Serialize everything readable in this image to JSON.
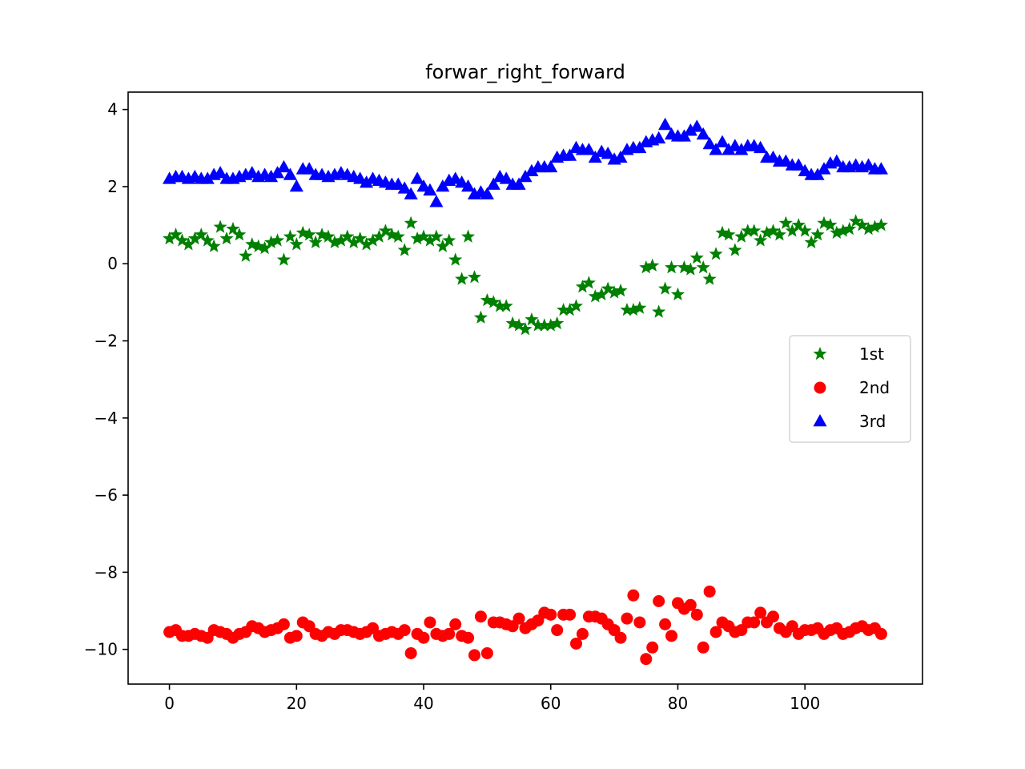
{
  "chart_data": {
    "type": "scatter",
    "title": "forwar_right_forward",
    "xlabel": "",
    "ylabel": "",
    "xlim": [
      -6.5,
      118.5
    ],
    "ylim": [
      -10.9,
      4.45
    ],
    "xticks": [
      0,
      20,
      40,
      60,
      80,
      100
    ],
    "yticks": [
      4,
      2,
      0,
      -2,
      -4,
      -6,
      -8,
      -10
    ],
    "xtick_labels": [
      "0",
      "20",
      "40",
      "60",
      "80",
      "100"
    ],
    "ytick_labels": [
      "4",
      "2",
      "0",
      "−2",
      "−4",
      "−6",
      "−8",
      "−10"
    ],
    "grid": false,
    "legend_position": "center-right",
    "series": [
      {
        "name": "1st",
        "marker": "star",
        "color": "#008000",
        "x": [
          0,
          1,
          2,
          3,
          4,
          5,
          6,
          7,
          8,
          9,
          10,
          11,
          12,
          13,
          14,
          15,
          16,
          17,
          18,
          19,
          20,
          21,
          22,
          23,
          24,
          25,
          26,
          27,
          28,
          29,
          30,
          31,
          32,
          33,
          34,
          35,
          36,
          37,
          38,
          39,
          40,
          41,
          42,
          43,
          44,
          45,
          46,
          47,
          48,
          49,
          50,
          51,
          52,
          53,
          54,
          55,
          56,
          57,
          58,
          59,
          60,
          61,
          62,
          63,
          64,
          65,
          66,
          67,
          68,
          69,
          70,
          71,
          72,
          73,
          74,
          75,
          76,
          77,
          78,
          79,
          80,
          81,
          82,
          83,
          84,
          85,
          86,
          87,
          88,
          89,
          90,
          91,
          92,
          93,
          94,
          95,
          96,
          97,
          98,
          99,
          100,
          101,
          102,
          103,
          104,
          105,
          106,
          107,
          108,
          109,
          110,
          111,
          112
        ],
        "y": [
          0.65,
          0.75,
          0.6,
          0.5,
          0.65,
          0.75,
          0.6,
          0.45,
          0.95,
          0.65,
          0.9,
          0.75,
          0.2,
          0.5,
          0.45,
          0.4,
          0.55,
          0.6,
          0.1,
          0.7,
          0.5,
          0.8,
          0.75,
          0.55,
          0.75,
          0.7,
          0.55,
          0.6,
          0.7,
          0.55,
          0.65,
          0.5,
          0.6,
          0.7,
          0.85,
          0.75,
          0.7,
          0.35,
          1.05,
          0.65,
          0.7,
          0.6,
          0.7,
          0.45,
          0.6,
          0.1,
          -0.4,
          0.7,
          -0.35,
          -1.4,
          -0.95,
          -1.0,
          -1.1,
          -1.1,
          -1.55,
          -1.6,
          -1.7,
          -1.45,
          -1.6,
          -1.6,
          -1.6,
          -1.55,
          -1.2,
          -1.2,
          -1.1,
          -0.6,
          -0.5,
          -0.85,
          -0.8,
          -0.65,
          -0.75,
          -0.7,
          -1.2,
          -1.2,
          -1.15,
          -0.1,
          -0.05,
          -1.25,
          -0.65,
          -0.1,
          -0.8,
          -0.1,
          -0.15,
          0.15,
          -0.1,
          -0.4,
          0.25,
          0.8,
          0.75,
          0.35,
          0.7,
          0.85,
          0.85,
          0.6,
          0.8,
          0.85,
          0.75,
          1.05,
          0.85,
          1.0,
          0.85,
          0.55,
          0.75,
          1.05,
          1.0,
          0.8,
          0.85,
          0.9,
          1.1,
          1.0,
          0.9,
          0.95,
          1.0
        ]
      },
      {
        "name": "2nd",
        "marker": "circle",
        "color": "#ff0000",
        "x": [
          0,
          1,
          2,
          3,
          4,
          5,
          6,
          7,
          8,
          9,
          10,
          11,
          12,
          13,
          14,
          15,
          16,
          17,
          18,
          19,
          20,
          21,
          22,
          23,
          24,
          25,
          26,
          27,
          28,
          29,
          30,
          31,
          32,
          33,
          34,
          35,
          36,
          37,
          38,
          39,
          40,
          41,
          42,
          43,
          44,
          45,
          46,
          47,
          48,
          49,
          50,
          51,
          52,
          53,
          54,
          55,
          56,
          57,
          58,
          59,
          60,
          61,
          62,
          63,
          64,
          65,
          66,
          67,
          68,
          69,
          70,
          71,
          72,
          73,
          74,
          75,
          76,
          77,
          78,
          79,
          80,
          81,
          82,
          83,
          84,
          85,
          86,
          87,
          88,
          89,
          90,
          91,
          92,
          93,
          94,
          95,
          96,
          97,
          98,
          99,
          100,
          101,
          102,
          103,
          104,
          105,
          106,
          107,
          108,
          109,
          110,
          111,
          112
        ],
        "y": [
          -9.55,
          -9.5,
          -9.65,
          -9.65,
          -9.6,
          -9.65,
          -9.7,
          -9.5,
          -9.55,
          -9.6,
          -9.7,
          -9.6,
          -9.55,
          -9.4,
          -9.45,
          -9.55,
          -9.5,
          -9.45,
          -9.35,
          -9.7,
          -9.65,
          -9.3,
          -9.4,
          -9.6,
          -9.65,
          -9.55,
          -9.6,
          -9.5,
          -9.5,
          -9.55,
          -9.6,
          -9.55,
          -9.45,
          -9.65,
          -9.6,
          -9.55,
          -9.6,
          -9.5,
          -10.1,
          -9.6,
          -9.7,
          -9.3,
          -9.6,
          -9.65,
          -9.6,
          -9.35,
          -9.65,
          -9.7,
          -10.15,
          -9.15,
          -10.1,
          -9.3,
          -9.3,
          -9.35,
          -9.4,
          -9.2,
          -9.45,
          -9.35,
          -9.25,
          -9.05,
          -9.1,
          -9.5,
          -9.1,
          -9.1,
          -9.85,
          -9.6,
          -9.15,
          -9.15,
          -9.2,
          -9.35,
          -9.5,
          -9.7,
          -9.2,
          -8.6,
          -9.3,
          -10.25,
          -9.95,
          -8.75,
          -9.35,
          -9.65,
          -8.8,
          -8.95,
          -8.85,
          -9.1,
          -9.95,
          -8.5,
          -9.55,
          -9.3,
          -9.4,
          -9.55,
          -9.5,
          -9.3,
          -9.3,
          -9.05,
          -9.3,
          -9.15,
          -9.45,
          -9.55,
          -9.4,
          -9.6,
          -9.5,
          -9.5,
          -9.45,
          -9.6,
          -9.5,
          -9.45,
          -9.6,
          -9.55,
          -9.45,
          -9.4,
          -9.5,
          -9.45,
          -9.6
        ]
      },
      {
        "name": "3rd",
        "marker": "triangle-up",
        "color": "#0000ff",
        "x": [
          0,
          1,
          2,
          3,
          4,
          5,
          6,
          7,
          8,
          9,
          10,
          11,
          12,
          13,
          14,
          15,
          16,
          17,
          18,
          19,
          20,
          21,
          22,
          23,
          24,
          25,
          26,
          27,
          28,
          29,
          30,
          31,
          32,
          33,
          34,
          35,
          36,
          37,
          38,
          39,
          40,
          41,
          42,
          43,
          44,
          45,
          46,
          47,
          48,
          49,
          50,
          51,
          52,
          53,
          54,
          55,
          56,
          57,
          58,
          59,
          60,
          61,
          62,
          63,
          64,
          65,
          66,
          67,
          68,
          69,
          70,
          71,
          72,
          73,
          74,
          75,
          76,
          77,
          78,
          79,
          80,
          81,
          82,
          83,
          84,
          85,
          86,
          87,
          88,
          89,
          90,
          91,
          92,
          93,
          94,
          95,
          96,
          97,
          98,
          99,
          100,
          101,
          102,
          103,
          104,
          105,
          106,
          107,
          108,
          109,
          110,
          111,
          112
        ],
        "y": [
          2.2,
          2.25,
          2.25,
          2.2,
          2.25,
          2.2,
          2.2,
          2.3,
          2.35,
          2.2,
          2.2,
          2.25,
          2.3,
          2.35,
          2.25,
          2.3,
          2.25,
          2.35,
          2.5,
          2.3,
          2.0,
          2.45,
          2.45,
          2.3,
          2.3,
          2.25,
          2.3,
          2.35,
          2.3,
          2.25,
          2.2,
          2.1,
          2.2,
          2.15,
          2.1,
          2.05,
          2.05,
          1.95,
          1.8,
          2.2,
          2.0,
          1.9,
          1.6,
          2.0,
          2.15,
          2.2,
          2.1,
          2.0,
          1.8,
          1.85,
          1.8,
          2.05,
          2.25,
          2.2,
          2.05,
          2.05,
          2.25,
          2.4,
          2.5,
          2.5,
          2.5,
          2.75,
          2.8,
          2.8,
          3.0,
          2.95,
          2.95,
          2.75,
          2.9,
          2.85,
          2.7,
          2.75,
          2.95,
          3.0,
          3.0,
          3.15,
          3.2,
          3.25,
          3.6,
          3.35,
          3.3,
          3.3,
          3.45,
          3.55,
          3.35,
          3.1,
          2.95,
          3.15,
          2.95,
          3.05,
          2.95,
          3.05,
          3.05,
          3.0,
          2.75,
          2.75,
          2.65,
          2.65,
          2.55,
          2.55,
          2.4,
          2.3,
          2.3,
          2.45,
          2.6,
          2.65,
          2.5,
          2.5,
          2.55,
          2.5,
          2.55,
          2.45,
          2.45
        ]
      }
    ]
  }
}
